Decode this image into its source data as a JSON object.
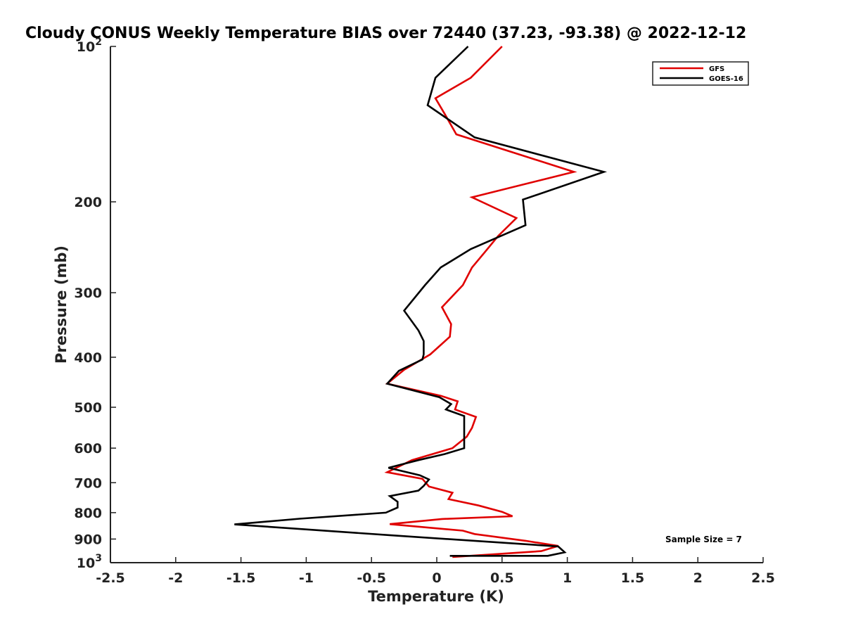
{
  "chart_data": {
    "type": "line",
    "title": "Cloudy CONUS Weekly Temperature BIAS over 72440 (37.23, -93.38) @ 2022-12-12",
    "xlabel": "Temperature (K)",
    "ylabel": "Pressure (mb)",
    "xlim": [
      -2.5,
      2.5
    ],
    "ylim": [
      100,
      1000
    ],
    "y_scale": "log",
    "y_reversed": true,
    "grid": false,
    "legend_position": "top-right",
    "x_ticks": [
      "-2.5",
      "-2",
      "-1.5",
      "-1",
      "-0.5",
      "0",
      "0.5",
      "1",
      "1.5",
      "2",
      "2.5"
    ],
    "y_ticks": [
      {
        "value": 100,
        "label": "10",
        "sup": "2"
      },
      {
        "value": 200,
        "label": "200"
      },
      {
        "value": 300,
        "label": "300"
      },
      {
        "value": 400,
        "label": "400"
      },
      {
        "value": 500,
        "label": "500"
      },
      {
        "value": 600,
        "label": "600"
      },
      {
        "value": 700,
        "label": "700"
      },
      {
        "value": 800,
        "label": "800"
      },
      {
        "value": 900,
        "label": "900"
      },
      {
        "value": 1000,
        "label": "10",
        "sup": "3"
      }
    ],
    "annotation": "Sample Size = 7",
    "series": [
      {
        "name": "GFS",
        "color": "#e00000",
        "x": [
          0.5,
          0.26,
          -0.01,
          0.06,
          0.15,
          1.05,
          0.27,
          0.61,
          0.47,
          0.37,
          0.27,
          0.2,
          0.04,
          0.11,
          0.1,
          -0.05,
          -0.25,
          -0.38,
          0.03,
          0.16,
          0.14,
          0.3,
          0.27,
          0.23,
          0.12,
          -0.19,
          -0.38,
          -0.11,
          -0.06,
          0.12,
          0.09,
          0.32,
          0.5,
          0.58,
          0.04,
          -0.36,
          0.2,
          0.29,
          0.68,
          0.93,
          0.8,
          0.12
        ],
        "y": [
          100,
          115,
          126,
          135,
          148,
          175,
          196,
          215,
          233,
          250,
          268,
          290,
          320,
          345,
          365,
          395,
          423,
          450,
          475,
          487,
          505,
          522,
          548,
          570,
          600,
          633,
          668,
          688,
          712,
          732,
          753,
          775,
          797,
          813,
          823,
          842,
          867,
          880,
          907,
          928,
          950,
          975
        ]
      },
      {
        "name": "GOES-16",
        "color": "#000000",
        "x": [
          0.24,
          -0.01,
          -0.07,
          0.29,
          1.28,
          0.66,
          0.68,
          0.26,
          0.03,
          -0.09,
          -0.25,
          -0.14,
          -0.1,
          -0.1,
          -0.11,
          -0.29,
          -0.38,
          0.02,
          0.11,
          0.07,
          0.21,
          0.21,
          0.21,
          0.21,
          0.06,
          -0.14,
          -0.37,
          -0.13,
          -0.06,
          -0.1,
          -0.14,
          -0.36,
          -0.3,
          -0.3,
          -0.39,
          -1.05,
          -1.55,
          -0.35,
          0.93,
          0.98,
          0.85,
          0.1
        ],
        "y": [
          100,
          115,
          130,
          150,
          175,
          198,
          222,
          247,
          268,
          290,
          325,
          355,
          372,
          395,
          404,
          425,
          450,
          478,
          493,
          505,
          520,
          550,
          578,
          600,
          616,
          633,
          655,
          677,
          690,
          710,
          725,
          743,
          762,
          782,
          800,
          822,
          843,
          885,
          930,
          955,
          970,
          970
        ]
      }
    ]
  }
}
